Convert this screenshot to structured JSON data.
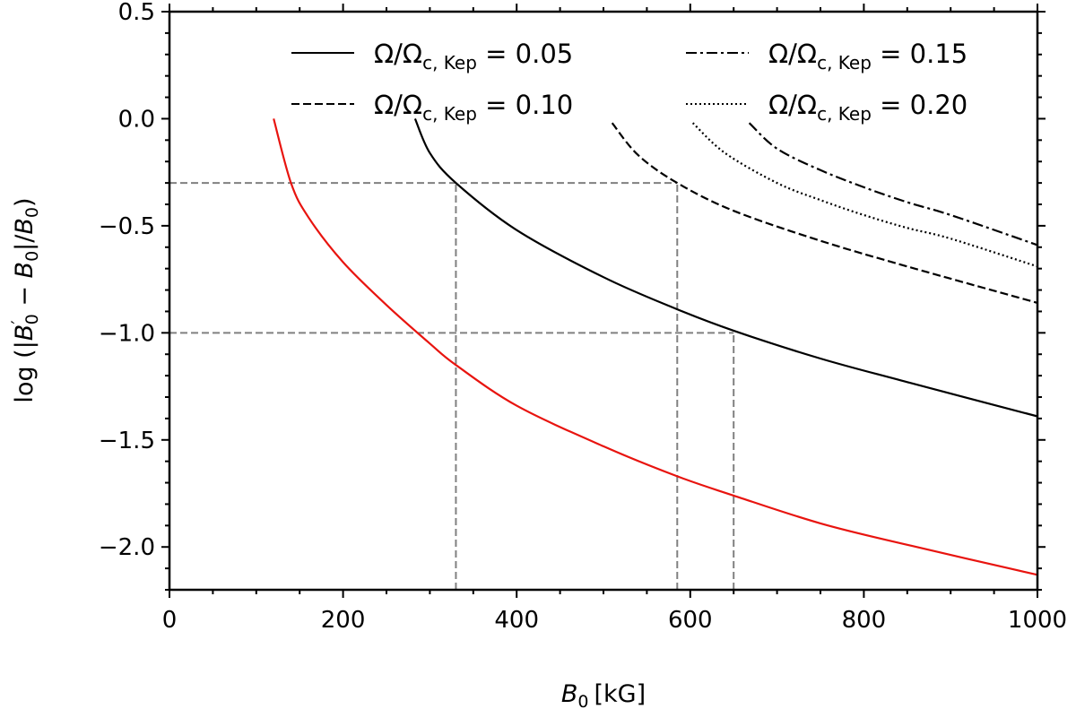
{
  "chart_data": {
    "type": "line",
    "title": "",
    "xlabel": "B0 [kG]",
    "xlabel_parts": {
      "var": "B",
      "sub": "0",
      "unit": "[kG]"
    },
    "ylabel": "log (|B0' − B0|/B0)",
    "ylabel_parts": {
      "prefix": "log (|",
      "b1": "B",
      "b1_sup": "′",
      "b1_sub": "0",
      "minus": " − ",
      "b2": "B",
      "b2_sub": "0",
      "mid": "|/",
      "b3": "B",
      "b3_sub": "0",
      "suffix": ")"
    },
    "xlim": [
      0,
      1000
    ],
    "ylim": [
      -2.2,
      0.5
    ],
    "xticks": [
      0,
      200,
      400,
      600,
      800,
      1000
    ],
    "yticks": [
      0.5,
      0.0,
      -0.5,
      -1.0,
      -1.5,
      -2.0
    ],
    "xtick_labels": [
      "0",
      "200",
      "400",
      "600",
      "800",
      "1000"
    ],
    "ytick_labels": [
      "0.5",
      "0.0",
      "−0.5",
      "−1.0",
      "−1.5",
      "−2.0"
    ],
    "xminor_step": 50,
    "yminor_step": 0.1,
    "grid": false,
    "legend_position": "top-right",
    "series": [
      {
        "name": "Ω/Ωc,Kep = 0.05",
        "legend_main": "Ω/Ω",
        "legend_sub": "c, Kep",
        "legend_value": " = 0.05",
        "style": "solid",
        "color": "#000000",
        "x": [
          283,
          300,
          330,
          400,
          500,
          585,
          650,
          750,
          850,
          1000
        ],
        "y": [
          0.0,
          -0.16,
          -0.3,
          -0.52,
          -0.74,
          -0.89,
          -0.99,
          -1.12,
          -1.23,
          -1.39
        ]
      },
      {
        "name": "Ω/Ωc,Kep = 0.10",
        "legend_main": "Ω/Ω",
        "legend_sub": "c, Kep",
        "legend_value": " = 0.10",
        "style": "dashed",
        "color": "#000000",
        "x": [
          510,
          540,
          585,
          650,
          750,
          850,
          1000
        ],
        "y": [
          -0.02,
          -0.17,
          -0.3,
          -0.43,
          -0.57,
          -0.69,
          -0.86
        ]
      },
      {
        "name": "Ω/Ωc,Kep = 0.15",
        "legend_main": "Ω/Ω",
        "legend_sub": "c, Kep",
        "legend_value": " = 0.15",
        "style": "dashdot",
        "color": "#000000",
        "x": [
          668,
          700,
          750,
          800,
          850,
          900,
          1000
        ],
        "y": [
          -0.02,
          -0.14,
          -0.24,
          -0.32,
          -0.39,
          -0.45,
          -0.59
        ]
      },
      {
        "name": "Ω/Ωc,Kep = 0.20",
        "legend_main": "Ω/Ω",
        "legend_sub": "c, Kep",
        "legend_value": " = 0.20",
        "style": "dotted",
        "color": "#000000",
        "x": [
          603,
          640,
          700,
          750,
          800,
          850,
          900,
          1000
        ],
        "y": [
          -0.02,
          -0.16,
          -0.3,
          -0.38,
          -0.45,
          -0.51,
          -0.56,
          -0.69
        ]
      },
      {
        "name": "unlabeled (red)",
        "style": "solid",
        "color": "#e8140f",
        "x": [
          120,
          140,
          160,
          200,
          250,
          300,
          330,
          400,
          500,
          585,
          650,
          750,
          850,
          1000
        ],
        "y": [
          0.0,
          -0.3,
          -0.46,
          -0.67,
          -0.87,
          -1.05,
          -1.15,
          -1.34,
          -1.53,
          -1.67,
          -1.76,
          -1.89,
          -1.99,
          -2.13
        ]
      }
    ],
    "reference_lines": [
      {
        "name": "h-ref-minus-0.3",
        "type": "h",
        "y": -0.3,
        "x_from": 0,
        "x_to": 585,
        "style": "dashed",
        "color": "#808080"
      },
      {
        "name": "h-ref-minus-1.0",
        "type": "h",
        "y": -1.0,
        "x_from": 0,
        "x_to": 650,
        "style": "dashed",
        "color": "#808080"
      },
      {
        "name": "v-ref-330",
        "type": "v",
        "x": 330,
        "y_from": -2.2,
        "y_to": -0.3,
        "style": "dashed",
        "color": "#808080"
      },
      {
        "name": "v-ref-585",
        "type": "v",
        "x": 585,
        "y_from": -2.2,
        "y_to": -0.3,
        "style": "dashed",
        "color": "#808080"
      },
      {
        "name": "v-ref-650",
        "type": "v",
        "x": 650,
        "y_from": -2.2,
        "y_to": -1.0,
        "style": "dashed",
        "color": "#808080"
      }
    ]
  }
}
